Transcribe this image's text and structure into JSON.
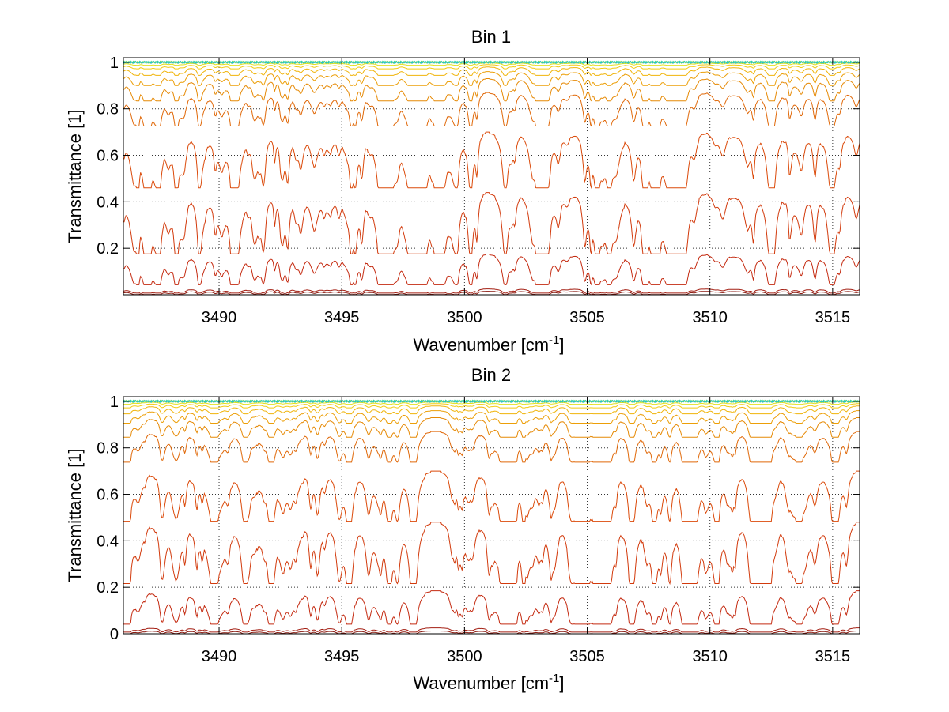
{
  "chart_data": [
    {
      "type": "line",
      "title": "Bin 1",
      "xlabel": "Wavenumber [cm",
      "xlabel_sup": "-1",
      "xlabel_end": "]",
      "ylabel": "Transmittance [1]",
      "xlim": [
        3486.1,
        3516.1
      ],
      "ylim": [
        0,
        1.02
      ],
      "xticks": [
        3490,
        3495,
        3500,
        3505,
        3510,
        3515
      ],
      "yticks": [
        0.2,
        0.4,
        0.6,
        0.8,
        1
      ],
      "xtick_labels": [
        "3490",
        "3495",
        "3500",
        "3505",
        "3510",
        "3515"
      ],
      "ytick_labels": [
        "0.2",
        "0.4",
        "0.6",
        "0.8",
        "1"
      ],
      "grid": true,
      "series": [
        {
          "baseline": 0.015,
          "depth": 0.012,
          "color": "#8b1a10"
        },
        {
          "baseline": 0.025,
          "depth": 0.015,
          "color": "#a31e12"
        },
        {
          "baseline": 0.175,
          "depth": 0.11,
          "color": "#c42a10"
        },
        {
          "baseline": 0.44,
          "depth": 0.22,
          "color": "#d23a0c"
        },
        {
          "baseline": 0.7,
          "depth": 0.2,
          "color": "#db4a0a"
        },
        {
          "baseline": 0.87,
          "depth": 0.12,
          "color": "#e06808"
        },
        {
          "baseline": 0.93,
          "depth": 0.08,
          "color": "#e68a06"
        },
        {
          "baseline": 0.96,
          "depth": 0.05,
          "color": "#ec9f08"
        },
        {
          "baseline": 0.98,
          "depth": 0.03,
          "color": "#f0b40a"
        },
        {
          "baseline": 0.99,
          "depth": 0.015,
          "color": "#f2cb10"
        },
        {
          "baseline": 0.997,
          "depth": 0.008,
          "color": "#e4e020"
        },
        {
          "baseline": 1.0,
          "depth": 0.004,
          "color": "#a6e040"
        },
        {
          "baseline": 1.001,
          "depth": 0.003,
          "color": "#40d890"
        },
        {
          "baseline": 1.0,
          "depth": 0.004,
          "color": "#20c0d0"
        }
      ]
    },
    {
      "type": "line",
      "title": "Bin 2",
      "xlabel": "Wavenumber [cm",
      "xlabel_sup": "-1",
      "xlabel_end": "]",
      "ylabel": "Transmittance [1]",
      "xlim": [
        3486.1,
        3516.1
      ],
      "ylim": [
        0,
        1.02
      ],
      "xticks": [
        3490,
        3495,
        3500,
        3505,
        3510,
        3515
      ],
      "yticks": [
        0,
        0.2,
        0.4,
        0.6,
        0.8,
        1
      ],
      "xtick_labels": [
        "3490",
        "3495",
        "3500",
        "3505",
        "3510",
        "3515"
      ],
      "ytick_labels": [
        "0",
        "0.2",
        "0.4",
        "0.6",
        "0.8",
        "1"
      ],
      "grid": true,
      "series": [
        {
          "baseline": 0.012,
          "depth": 0.01,
          "color": "#8b1a10"
        },
        {
          "baseline": 0.025,
          "depth": 0.015,
          "color": "#a31e12"
        },
        {
          "baseline": 0.185,
          "depth": 0.12,
          "color": "#c42a10"
        },
        {
          "baseline": 0.48,
          "depth": 0.22,
          "color": "#d23a0c"
        },
        {
          "baseline": 0.7,
          "depth": 0.18,
          "color": "#db4a0a"
        },
        {
          "baseline": 0.87,
          "depth": 0.11,
          "color": "#e06808"
        },
        {
          "baseline": 0.93,
          "depth": 0.07,
          "color": "#e68a06"
        },
        {
          "baseline": 0.96,
          "depth": 0.045,
          "color": "#ec9f08"
        },
        {
          "baseline": 0.98,
          "depth": 0.028,
          "color": "#f0b40a"
        },
        {
          "baseline": 0.99,
          "depth": 0.015,
          "color": "#f2cb10"
        },
        {
          "baseline": 0.997,
          "depth": 0.008,
          "color": "#e4e020"
        },
        {
          "baseline": 1.0,
          "depth": 0.004,
          "color": "#a6e040"
        },
        {
          "baseline": 1.001,
          "depth": 0.003,
          "color": "#40d890"
        },
        {
          "baseline": 1.0,
          "depth": 0.004,
          "color": "#20c0d0"
        }
      ]
    }
  ]
}
